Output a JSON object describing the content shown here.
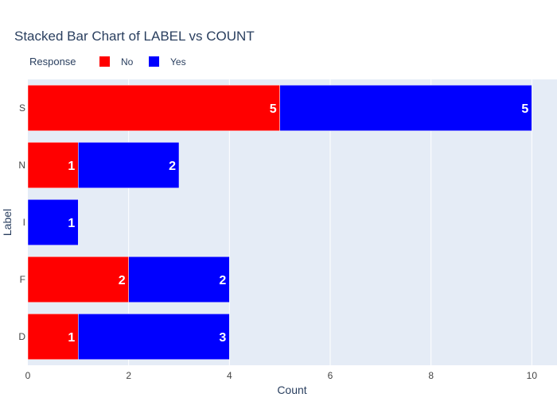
{
  "chart_data": {
    "type": "bar",
    "orientation": "horizontal",
    "barmode": "stack",
    "title": "Stacked Bar Chart of LABEL vs COUNT",
    "xlabel": "Count",
    "ylabel": "Label",
    "categories": [
      "D",
      "F",
      "I",
      "N",
      "S"
    ],
    "xlim": [
      0,
      10.5
    ],
    "xticks": [
      "0",
      "2",
      "4",
      "6",
      "8",
      "10"
    ],
    "grid": true,
    "legend": {
      "title": "Response",
      "placement": "top-left"
    },
    "series": [
      {
        "name": "No",
        "color": "#ff0000",
        "values": [
          1,
          2,
          0,
          1,
          5
        ],
        "labels": [
          "1",
          "2",
          "",
          "1",
          "5"
        ]
      },
      {
        "name": "Yes",
        "color": "#0000ff",
        "values": [
          3,
          2,
          1,
          2,
          5
        ],
        "labels": [
          "3",
          "2",
          "1",
          "2",
          "5"
        ]
      }
    ]
  },
  "colors": {
    "plot_background": "#e5ecf6",
    "grid": "#ffffff",
    "text": "#2a3f5f",
    "tick_text": "#444444",
    "bar_label": "#ffffff"
  }
}
